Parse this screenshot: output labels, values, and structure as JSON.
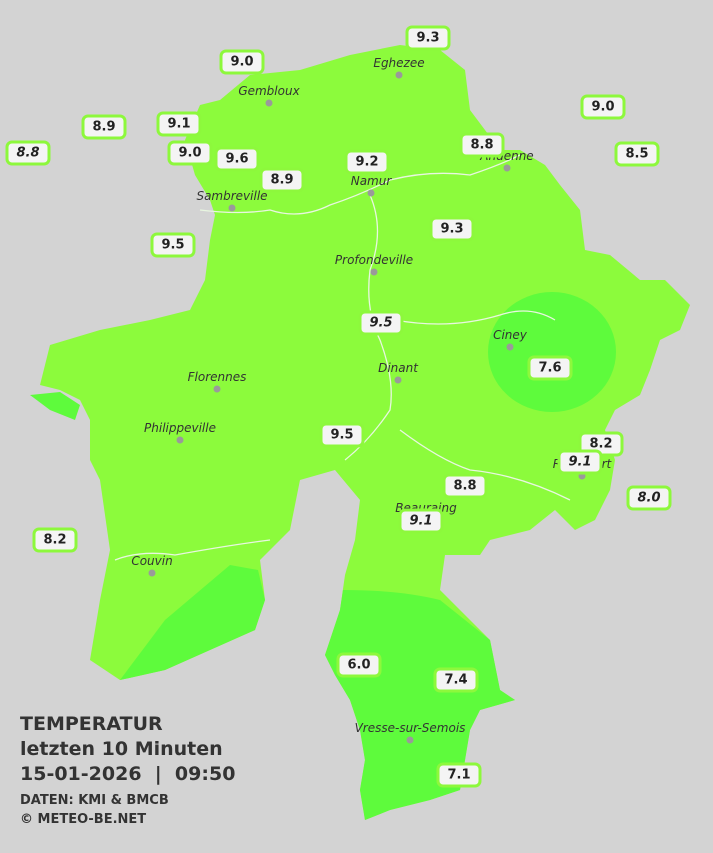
{
  "header": {
    "title": "TEMPERATUR",
    "subtitle": "letzten 10 Minuten",
    "datetime": "15-01-2026  |  09:50",
    "source": "DATEN: KMI & BMCB",
    "credit": "© METEO-BE.NET"
  },
  "towns": [
    "Eghezee",
    "Gembloux",
    "Andenne",
    "Namur",
    "Sambreville",
    "Profondeville",
    "Ciney",
    "Dinant",
    "Florennes",
    "Philippeville",
    "Rochefort",
    "Beauraing",
    "Couvin",
    "Vresse-sur-Semois"
  ],
  "stations": [
    {
      "label": "9.3",
      "italic": false
    },
    {
      "label": "9.0",
      "italic": false
    },
    {
      "label": "9.0",
      "italic": false
    },
    {
      "label": "8.9",
      "italic": false
    },
    {
      "label": "9.1",
      "italic": false
    },
    {
      "label": "8.8",
      "italic": true
    },
    {
      "label": "9.0",
      "italic": false
    },
    {
      "label": "9.6",
      "italic": false
    },
    {
      "label": "8.8",
      "italic": false
    },
    {
      "label": "8.5",
      "italic": false
    },
    {
      "label": "9.2",
      "italic": false
    },
    {
      "label": "8.9",
      "italic": false
    },
    {
      "label": "9.3",
      "italic": false
    },
    {
      "label": "9.5",
      "italic": false
    },
    {
      "label": "9.5",
      "italic": true
    },
    {
      "label": "7.6",
      "italic": false
    },
    {
      "label": "9.5",
      "italic": false
    },
    {
      "label": "8.2",
      "italic": false
    },
    {
      "label": "9.1",
      "italic": true
    },
    {
      "label": "8.0",
      "italic": true
    },
    {
      "label": "8.8",
      "italic": false
    },
    {
      "label": "9.1",
      "italic": true
    },
    {
      "label": "8.2",
      "italic": false
    },
    {
      "label": "6.0",
      "italic": false
    },
    {
      "label": "7.4",
      "italic": false
    },
    {
      "label": "7.1",
      "italic": false
    }
  ]
}
